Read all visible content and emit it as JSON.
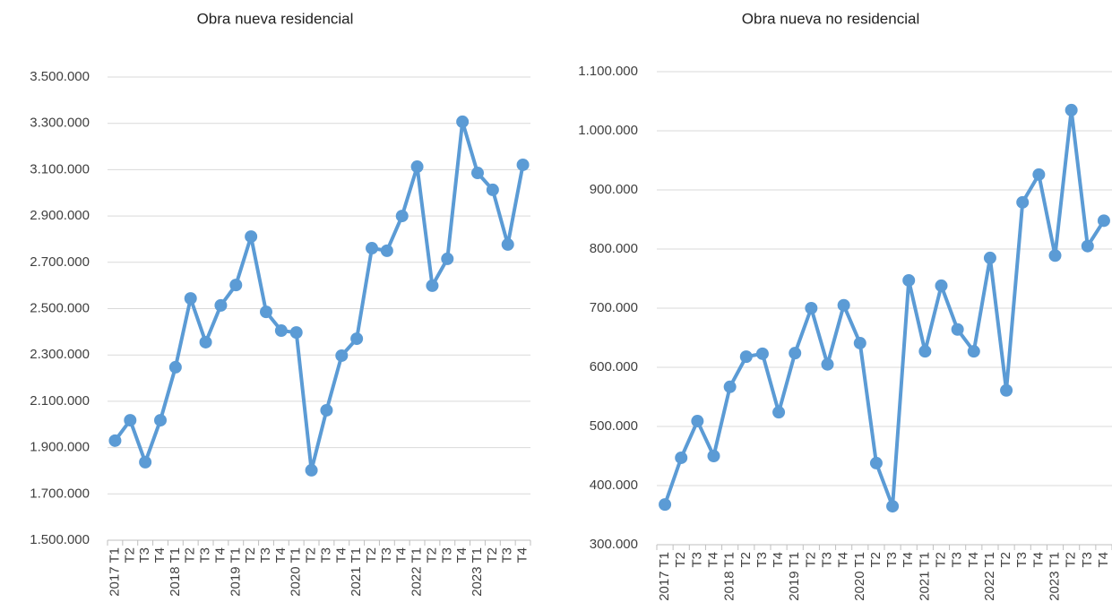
{
  "chart_data": [
    {
      "type": "line",
      "title": "Obra nueva residencial",
      "categories": [
        "2017 T1",
        "T2",
        "T3",
        "T4",
        "2018 T1",
        "T2",
        "T3",
        "T4",
        "2019 T1",
        "T2",
        "T3",
        "T4",
        "2020 T1",
        "T2",
        "T3",
        "T4",
        "2021 T1",
        "T2",
        "T3",
        "T4",
        "2022 T1",
        "T2",
        "T3",
        "T4",
        "2023 T1",
        "T2",
        "T3",
        "T4"
      ],
      "series": [
        {
          "name": "Obra nueva residencial",
          "color": "#5b9bd5",
          "values": [
            1930000,
            2018000,
            1837000,
            2018000,
            2247000,
            2544000,
            2355000,
            2514000,
            2602000,
            2811000,
            2486000,
            2405000,
            2397000,
            1802000,
            2061000,
            2297000,
            2370000,
            2761000,
            2750000,
            2900000,
            3113000,
            2599000,
            2715000,
            3307000,
            3086000,
            3013000,
            2777000,
            3121000
          ]
        }
      ],
      "ylim": [
        1500000,
        3500000
      ],
      "yticks": [
        {
          "value": 1500000,
          "label": "1.500.000"
        },
        {
          "value": 1700000,
          "label": "1.700.000"
        },
        {
          "value": 1900000,
          "label": "1.900.000"
        },
        {
          "value": 2100000,
          "label": "2.100.000"
        },
        {
          "value": 2300000,
          "label": "2.300.000"
        },
        {
          "value": 2500000,
          "label": "2.500.000"
        },
        {
          "value": 2700000,
          "label": "2.700.000"
        },
        {
          "value": 2900000,
          "label": "2.900.000"
        },
        {
          "value": 3100000,
          "label": "3.100.000"
        },
        {
          "value": 3300000,
          "label": "3.300.000"
        },
        {
          "value": 3500000,
          "label": "3.500.000"
        }
      ],
      "grid": true
    },
    {
      "type": "line",
      "title": "Obra nueva no residencial",
      "categories": [
        "2017 T1",
        "T2",
        "T3",
        "T4",
        "2018 T1",
        "T2",
        "T3",
        "T4",
        "2019 T1",
        "T2",
        "T3",
        "T4",
        "2020 T1",
        "T2",
        "T3",
        "T4",
        "2021 T1",
        "T2",
        "T3",
        "T4",
        "2022 T1",
        "T2",
        "T3",
        "T4",
        "2023 T1",
        "T2",
        "T3",
        "T4"
      ],
      "series": [
        {
          "name": "Obra nueva no residencial",
          "color": "#5b9bd5",
          "values": [
            368000,
            447000,
            509000,
            450000,
            567000,
            618000,
            623000,
            524000,
            624000,
            700000,
            605000,
            705000,
            641000,
            438000,
            365000,
            747000,
            627000,
            738000,
            664000,
            627000,
            785000,
            561000,
            879000,
            926000,
            789000,
            1035000,
            805000,
            848000
          ]
        }
      ],
      "ylim": [
        300000,
        1100000
      ],
      "yticks": [
        {
          "value": 300000,
          "label": "300.000"
        },
        {
          "value": 400000,
          "label": "400.000"
        },
        {
          "value": 500000,
          "label": "500.000"
        },
        {
          "value": 600000,
          "label": "600.000"
        },
        {
          "value": 700000,
          "label": "700.000"
        },
        {
          "value": 800000,
          "label": "800.000"
        },
        {
          "value": 900000,
          "label": "900.000"
        },
        {
          "value": 1000000,
          "label": "1.000.000"
        },
        {
          "value": 1100000,
          "label": "1.100.000"
        }
      ],
      "grid": true
    }
  ]
}
